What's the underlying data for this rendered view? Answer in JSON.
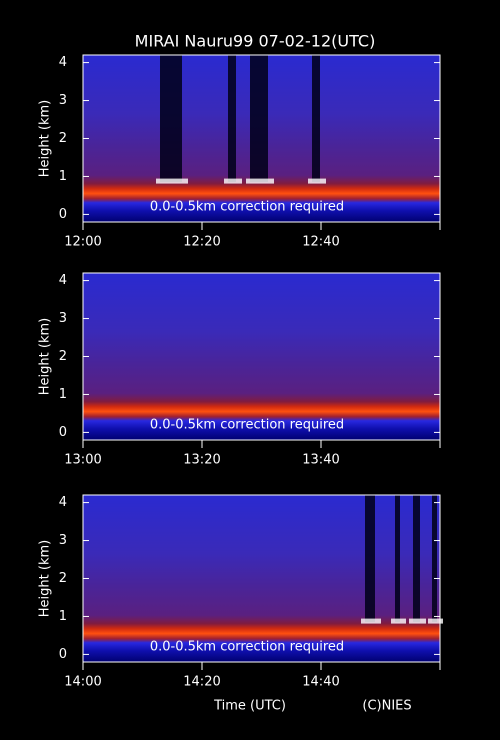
{
  "title": "MIRAI Nauru99 07-02-12(UTC)",
  "xlabel": "Time (UTC)",
  "credit": "(C)NIES",
  "chart_data": [
    {
      "type": "heatmap",
      "ylabel": "Height (km)",
      "annotation": "0.0-0.5km correction required",
      "ylim": [
        -0.2,
        4.2
      ],
      "yticks": [
        0,
        1,
        2,
        3,
        4
      ],
      "xlim": [
        720,
        780
      ],
      "xticks": [
        {
          "value": 720,
          "label": "12:00"
        },
        {
          "value": 740,
          "label": "12:20"
        },
        {
          "value": 760,
          "label": "12:40"
        }
      ]
    },
    {
      "type": "heatmap",
      "ylabel": "Height (km)",
      "annotation": "0.0-0.5km correction required",
      "ylim": [
        -0.2,
        4.2
      ],
      "yticks": [
        0,
        1,
        2,
        3,
        4
      ],
      "xlim": [
        780,
        840
      ],
      "xticks": [
        {
          "value": 780,
          "label": "13:00"
        },
        {
          "value": 800,
          "label": "13:20"
        },
        {
          "value": 820,
          "label": "13:40"
        }
      ]
    },
    {
      "type": "heatmap",
      "ylabel": "Height (km)",
      "annotation": "0.0-0.5km correction required",
      "ylim": [
        -0.2,
        4.2
      ],
      "yticks": [
        0,
        1,
        2,
        3,
        4
      ],
      "xlim": [
        840,
        900
      ],
      "xticks": [
        {
          "value": 840,
          "label": "14:00"
        },
        {
          "value": 860,
          "label": "14:20"
        },
        {
          "value": 880,
          "label": "14:40"
        }
      ]
    }
  ]
}
